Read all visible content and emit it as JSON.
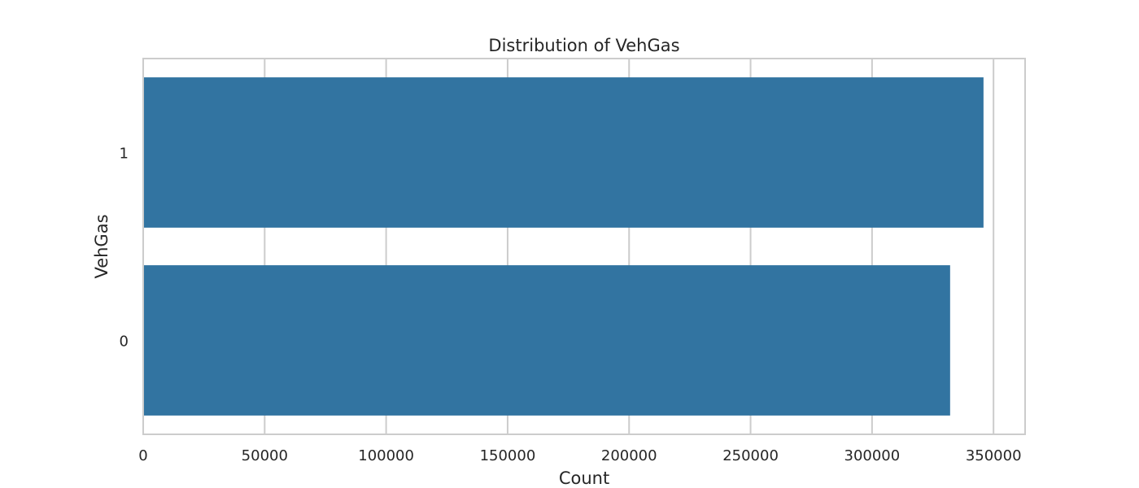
{
  "chart_data": {
    "type": "bar",
    "orientation": "horizontal",
    "title": "Distribution of VehGas",
    "xlabel": "Count",
    "ylabel": "VehGas",
    "categories": [
      "1",
      "0"
    ],
    "values": [
      345877,
      332136
    ],
    "xlim": [
      0,
      363000
    ],
    "xticks": [
      0,
      50000,
      100000,
      150000,
      200000,
      250000,
      300000,
      350000
    ],
    "xtick_labels": [
      "0",
      "50000",
      "100000",
      "150000",
      "200000",
      "250000",
      "300000",
      "350000"
    ],
    "grid": true,
    "legend": "none",
    "colors": {
      "bar": "#3274a1",
      "grid": "#cccccc",
      "spine": "#cccccc",
      "text": "#262626"
    }
  }
}
